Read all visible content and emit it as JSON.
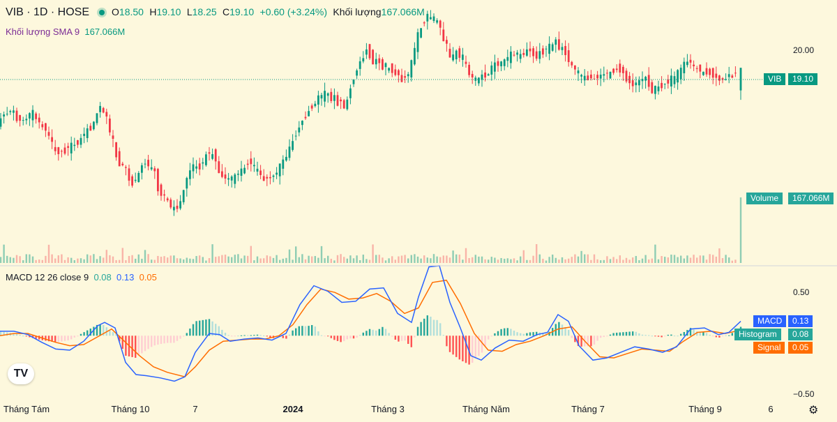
{
  "header": {
    "symbol": "VIB · 1D · HOSE",
    "open_label": "O",
    "open": "18.50",
    "high_label": "H",
    "high": "19.10",
    "low_label": "L",
    "low": "18.25",
    "close_label": "C",
    "close": "19.10",
    "change": "+0.60 (+3.24%)",
    "volume_label": "Khối lượng",
    "volume": "167.066M",
    "sma_label": "Khối lượng SMA 9",
    "sma_value": "167.066M"
  },
  "macd_header": {
    "label": "MACD 12 26 close 9",
    "hist": "0.08",
    "macd": "0.13",
    "signal": "0.05"
  },
  "tags": {
    "price_name": "VIB",
    "price_value": "19.10",
    "volume_name": "Volume",
    "volume_value": "167.066M",
    "macd_name": "MACD",
    "macd_value": "0.13",
    "hist_name": "Histogram",
    "hist_value": "0.08",
    "signal_name": "Signal",
    "signal_value": "0.05"
  },
  "y_axis_labels": {
    "price": "20.00",
    "macd_top": "0.50",
    "macd_bottom": "−0.50"
  },
  "x_axis_labels": [
    "Tháng Tám",
    "Tháng 10",
    "7",
    "2024",
    "Tháng 3",
    "Tháng Năm",
    "Tháng 7",
    "Tháng 9",
    "6"
  ],
  "logo_text": "TV",
  "colors": {
    "up": "#089981",
    "down": "#f23645",
    "macd": "#2962ff",
    "signal": "#ff6d00",
    "background": "#fdf8dd",
    "price_line": "#089981"
  },
  "chart_data": [
    {
      "type": "candlestick",
      "series": [
        {
          "name": "VIB"
        }
      ],
      "last": {
        "open": 18.5,
        "high": 19.1,
        "low": 18.25,
        "close": 19.1
      },
      "ylim": [
        13.9,
        20.9
      ],
      "ticks": [
        20.0
      ],
      "path": [
        [
          0,
          17.6
        ],
        [
          8,
          17.8
        ],
        [
          18,
          18.0
        ],
        [
          32,
          17.7
        ],
        [
          40,
          17.7
        ],
        [
          50,
          17.9
        ],
        [
          62,
          17.6
        ],
        [
          72,
          17.4
        ],
        [
          85,
          16.8
        ],
        [
          95,
          16.9
        ],
        [
          108,
          17.0
        ],
        [
          120,
          17.2
        ],
        [
          132,
          17.5
        ],
        [
          140,
          17.7
        ],
        [
          147,
          18.1
        ],
        [
          155,
          17.9
        ],
        [
          165,
          17.2
        ],
        [
          172,
          16.7
        ],
        [
          182,
          16.5
        ],
        [
          192,
          16.0
        ],
        [
          203,
          16.3
        ],
        [
          212,
          16.6
        ],
        [
          225,
          16.4
        ],
        [
          232,
          15.8
        ],
        [
          245,
          15.6
        ],
        [
          253,
          15.3
        ],
        [
          262,
          15.5
        ],
        [
          270,
          16.0
        ],
        [
          280,
          16.5
        ],
        [
          290,
          16.4
        ],
        [
          300,
          16.8
        ],
        [
          310,
          16.8
        ],
        [
          320,
          16.3
        ],
        [
          330,
          16.1
        ],
        [
          342,
          16.2
        ],
        [
          352,
          16.4
        ],
        [
          362,
          16.6
        ],
        [
          372,
          16.4
        ],
        [
          385,
          16.1
        ],
        [
          395,
          16.2
        ],
        [
          405,
          16.4
        ],
        [
          415,
          16.8
        ],
        [
          425,
          17.2
        ],
        [
          435,
          17.6
        ],
        [
          447,
          18.0
        ],
        [
          457,
          18.2
        ],
        [
          470,
          18.4
        ],
        [
          480,
          18.3
        ],
        [
          490,
          18.2
        ],
        [
          500,
          18.1
        ],
        [
          505,
          18.4
        ],
        [
          512,
          18.9
        ],
        [
          520,
          19.2
        ],
        [
          530,
          19.6
        ],
        [
          540,
          19.3
        ],
        [
          550,
          19.2
        ],
        [
          560,
          19.1
        ],
        [
          570,
          19.0
        ],
        [
          580,
          18.8
        ],
        [
          590,
          18.9
        ],
        [
          597,
          19.5
        ],
        [
          603,
          19.9
        ],
        [
          610,
          20.3
        ],
        [
          620,
          20.5
        ],
        [
          630,
          20.4
        ],
        [
          640,
          19.9
        ],
        [
          650,
          19.4
        ],
        [
          660,
          19.5
        ],
        [
          670,
          19.3
        ],
        [
          680,
          18.8
        ],
        [
          690,
          18.8
        ],
        [
          700,
          18.9
        ],
        [
          710,
          19.1
        ],
        [
          720,
          19.2
        ],
        [
          730,
          19.3
        ],
        [
          740,
          19.5
        ],
        [
          750,
          19.4
        ],
        [
          760,
          19.6
        ],
        [
          770,
          19.4
        ],
        [
          780,
          19.5
        ],
        [
          790,
          19.6
        ],
        [
          800,
          19.8
        ],
        [
          810,
          19.6
        ],
        [
          820,
          19.3
        ],
        [
          830,
          19.0
        ],
        [
          840,
          18.8
        ],
        [
          850,
          18.9
        ],
        [
          860,
          18.8
        ],
        [
          870,
          18.9
        ],
        [
          880,
          19.0
        ],
        [
          890,
          19.1
        ],
        [
          900,
          18.9
        ],
        [
          910,
          18.6
        ],
        [
          920,
          18.7
        ],
        [
          930,
          18.8
        ],
        [
          940,
          18.5
        ],
        [
          950,
          18.6
        ],
        [
          960,
          18.7
        ],
        [
          970,
          18.8
        ],
        [
          980,
          19.0
        ],
        [
          990,
          19.3
        ],
        [
          1000,
          19.1
        ],
        [
          1010,
          19.0
        ],
        [
          1020,
          19.0
        ],
        [
          1030,
          18.8
        ],
        [
          1040,
          18.8
        ],
        [
          1050,
          18.9
        ],
        [
          1056,
          18.9
        ],
        [
          1062,
          19.1
        ]
      ]
    },
    {
      "type": "bar",
      "series": [
        {
          "name": "Volume"
        }
      ],
      "last": 167.066,
      "unit": "M"
    },
    {
      "type": "line",
      "series": [
        {
          "name": "MACD",
          "values": [
            [
              0,
              0.04
            ],
            [
              20,
              0.04
            ],
            [
              40,
              0.01
            ],
            [
              60,
              -0.06
            ],
            [
              80,
              -0.12
            ],
            [
              100,
              -0.13
            ],
            [
              120,
              -0.05
            ],
            [
              140,
              0.09
            ],
            [
              150,
              0.12
            ],
            [
              165,
              0.07
            ],
            [
              180,
              -0.24
            ],
            [
              195,
              -0.35
            ],
            [
              210,
              -0.36
            ],
            [
              230,
              -0.38
            ],
            [
              250,
              -0.41
            ],
            [
              265,
              -0.37
            ],
            [
              280,
              -0.15
            ],
            [
              300,
              0.02
            ],
            [
              315,
              0.01
            ],
            [
              330,
              -0.05
            ],
            [
              350,
              -0.03
            ],
            [
              370,
              -0.02
            ],
            [
              390,
              -0.04
            ],
            [
              410,
              0.02
            ],
            [
              430,
              0.28
            ],
            [
              450,
              0.45
            ],
            [
              470,
              0.4
            ],
            [
              490,
              0.3
            ],
            [
              510,
              0.31
            ],
            [
              530,
              0.42
            ],
            [
              550,
              0.43
            ],
            [
              570,
              0.2
            ],
            [
              590,
              0.12
            ],
            [
              600,
              0.35
            ],
            [
              615,
              0.62
            ],
            [
              630,
              0.63
            ],
            [
              645,
              0.3
            ],
            [
              660,
              0.07
            ],
            [
              675,
              -0.18
            ],
            [
              690,
              -0.22
            ],
            [
              710,
              -0.11
            ],
            [
              730,
              -0.04
            ],
            [
              750,
              -0.05
            ],
            [
              770,
              0.01
            ],
            [
              785,
              0.03
            ],
            [
              800,
              0.19
            ],
            [
              815,
              0.13
            ],
            [
              830,
              -0.09
            ],
            [
              850,
              -0.22
            ],
            [
              870,
              -0.2
            ],
            [
              890,
              -0.15
            ],
            [
              910,
              -0.1
            ],
            [
              930,
              -0.12
            ],
            [
              950,
              -0.15
            ],
            [
              970,
              -0.1
            ],
            [
              990,
              0.06
            ],
            [
              1010,
              0.07
            ],
            [
              1030,
              0.01
            ],
            [
              1045,
              0.03
            ],
            [
              1062,
              0.13
            ]
          ]
        },
        {
          "name": "Signal",
          "values": [
            [
              0,
              0.0
            ],
            [
              20,
              0.02
            ],
            [
              40,
              0.02
            ],
            [
              60,
              -0.02
            ],
            [
              80,
              -0.06
            ],
            [
              100,
              -0.09
            ],
            [
              120,
              -0.08
            ],
            [
              140,
              -0.01
            ],
            [
              160,
              0.06
            ],
            [
              180,
              -0.06
            ],
            [
              200,
              -0.18
            ],
            [
              220,
              -0.28
            ],
            [
              240,
              -0.33
            ],
            [
              265,
              -0.37
            ],
            [
              280,
              -0.28
            ],
            [
              300,
              -0.13
            ],
            [
              320,
              -0.05
            ],
            [
              340,
              -0.04
            ],
            [
              360,
              -0.03
            ],
            [
              380,
              -0.03
            ],
            [
              400,
              0.0
            ],
            [
              420,
              0.1
            ],
            [
              440,
              0.28
            ],
            [
              460,
              0.42
            ],
            [
              480,
              0.39
            ],
            [
              500,
              0.33
            ],
            [
              520,
              0.34
            ],
            [
              540,
              0.38
            ],
            [
              560,
              0.31
            ],
            [
              580,
              0.2
            ],
            [
              600,
              0.25
            ],
            [
              620,
              0.48
            ],
            [
              640,
              0.5
            ],
            [
              660,
              0.29
            ],
            [
              680,
              0.02
            ],
            [
              700,
              -0.13
            ],
            [
              720,
              -0.14
            ],
            [
              740,
              -0.08
            ],
            [
              760,
              -0.05
            ],
            [
              780,
              0.0
            ],
            [
              800,
              0.06
            ],
            [
              820,
              0.08
            ],
            [
              840,
              -0.06
            ],
            [
              860,
              -0.19
            ],
            [
              880,
              -0.2
            ],
            [
              900,
              -0.16
            ],
            [
              920,
              -0.12
            ],
            [
              940,
              -0.13
            ],
            [
              960,
              -0.14
            ],
            [
              980,
              -0.05
            ],
            [
              1000,
              0.03
            ],
            [
              1020,
              0.04
            ],
            [
              1040,
              0.02
            ],
            [
              1062,
              0.05
            ]
          ]
        }
      ],
      "ylim": [
        -0.57,
        0.63
      ],
      "ticks": [
        0.5,
        -0.5
      ]
    },
    {
      "type": "bar",
      "series": [
        {
          "name": "Histogram"
        }
      ],
      "last": 0.08
    }
  ]
}
